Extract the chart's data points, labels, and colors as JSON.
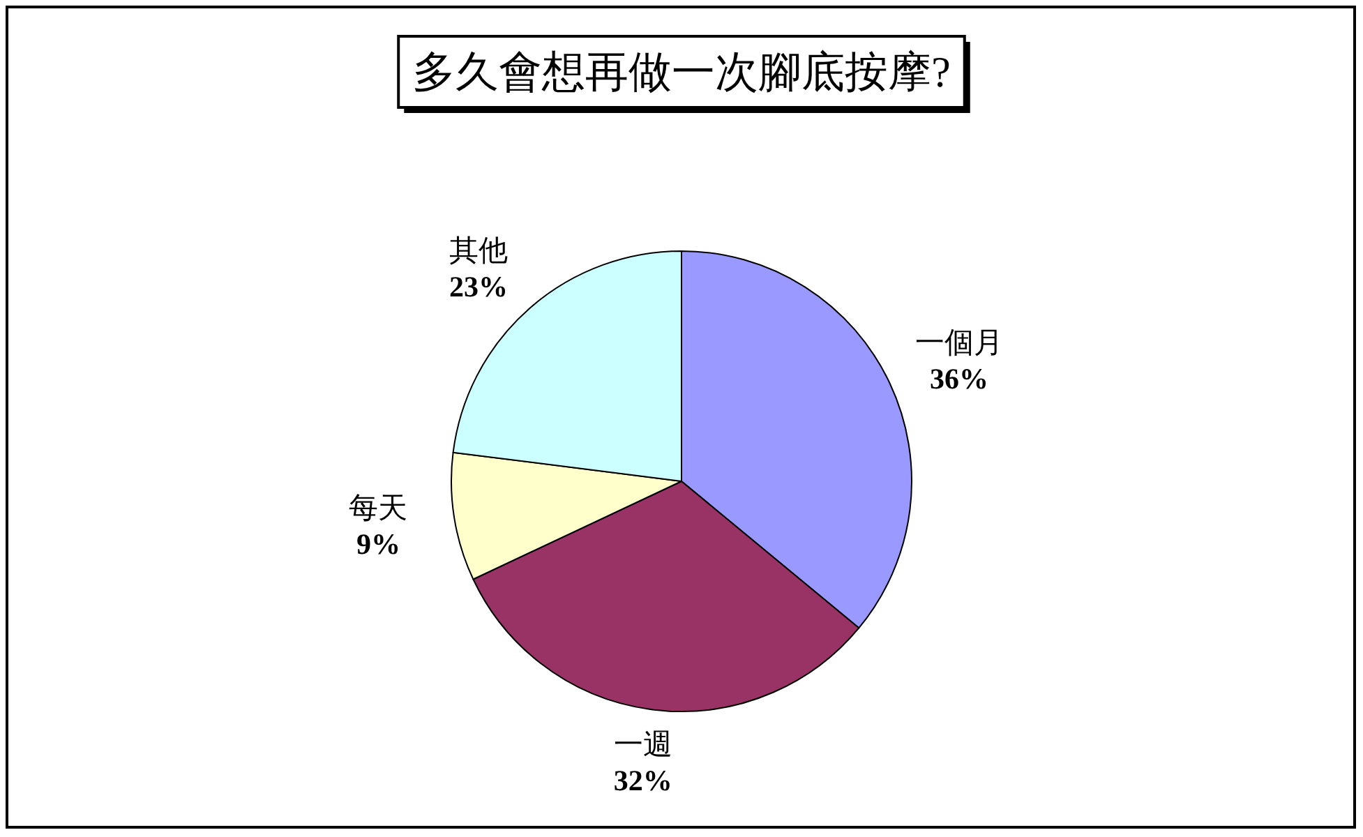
{
  "chart_data": {
    "type": "pie",
    "title": "多久會想再做一次腳底按摩?",
    "categories": [
      "一個月",
      "一週",
      "每天",
      "其他"
    ],
    "values": [
      36,
      32,
      9,
      23
    ],
    "value_labels": [
      "36%",
      "32%",
      "9%",
      "23%"
    ],
    "colors": [
      "#9999ff",
      "#993366",
      "#ffffcc",
      "#ccffff"
    ]
  }
}
